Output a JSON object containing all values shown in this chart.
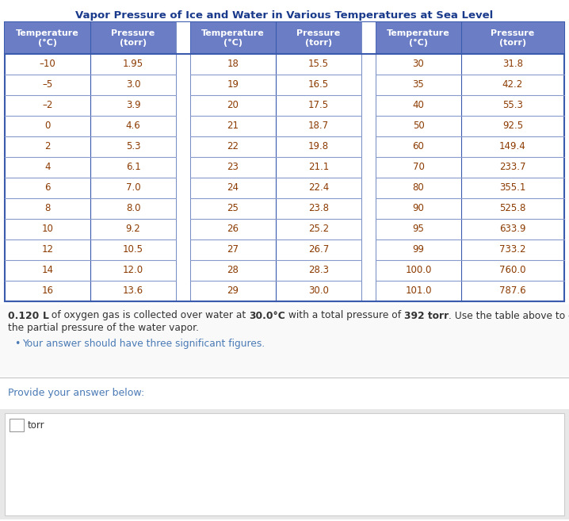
{
  "title": "Vapor Pressure of Ice and Water in Various Temperatures at Sea Level",
  "title_color": "#1a3a8c",
  "header_bg": "#6b7ec5",
  "header_text_color": "#ffffff",
  "header_labels": [
    "Temperature\n(°C)",
    "Pressure\n(torr)",
    "Temperature\n(°C)",
    "Pressure\n(torr)",
    "Temperature\n(°C)",
    "Pressure\n(torr)"
  ],
  "col1_temp": [
    "–10",
    "–5",
    "–2",
    "0",
    "2",
    "4",
    "6",
    "8",
    "10",
    "12",
    "14",
    "16"
  ],
  "col1_pres": [
    "1.95",
    "3.0",
    "3.9",
    "4.6",
    "5.3",
    "6.1",
    "7.0",
    "8.0",
    "9.2",
    "10.5",
    "12.0",
    "13.6"
  ],
  "col2_temp": [
    "18",
    "19",
    "20",
    "21",
    "22",
    "23",
    "24",
    "25",
    "26",
    "27",
    "28",
    "29"
  ],
  "col2_pres": [
    "15.5",
    "16.5",
    "17.5",
    "18.7",
    "19.8",
    "21.1",
    "22.4",
    "23.8",
    "25.2",
    "26.7",
    "28.3",
    "30.0"
  ],
  "col3_temp": [
    "30",
    "35",
    "40",
    "50",
    "60",
    "70",
    "80",
    "90",
    "95",
    "99",
    "100.0",
    "101.0"
  ],
  "col3_pres": [
    "31.8",
    "42.2",
    "55.3",
    "92.5",
    "149.4",
    "233.7",
    "355.1",
    "525.8",
    "633.9",
    "733.2",
    "760.0",
    "787.6"
  ],
  "table_border_color": "#3a5aad",
  "row_line_color": "#8899cc",
  "data_text_color": "#8b3a00",
  "q_normal_color": "#333333",
  "q_bold_color": "#111111",
  "bullet_color": "#4a7ab5",
  "provide_color": "#4a7ab5",
  "input_label": "torr",
  "bg_color": "#ffffff"
}
